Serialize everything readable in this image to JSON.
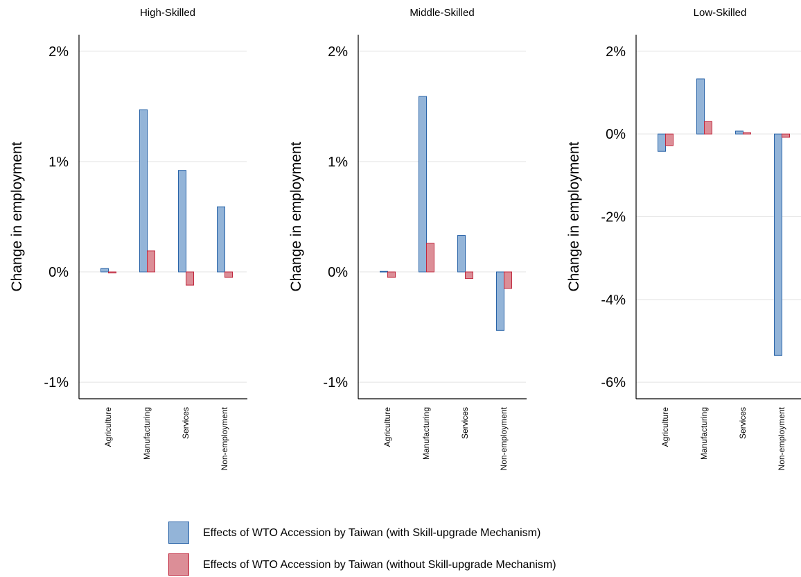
{
  "colors": {
    "with_fill": "#93b4d8",
    "with_stroke": "#2a64a8",
    "without_fill": "#dc8e97",
    "without_stroke": "#c0283e",
    "grid": "#e3e3e3",
    "axis": "#000000"
  },
  "legend": {
    "items": [
      {
        "label": "Effects of WTO Accession by Taiwan (with Skill-upgrade Mechanism)",
        "series": "with"
      },
      {
        "label": "Effects of WTO Accession by Taiwan (without Skill-upgrade Mechanism)",
        "series": "without"
      }
    ]
  },
  "chart_data": [
    {
      "type": "bar",
      "title": "High-Skilled",
      "ylabel": "Change in employment",
      "categories": [
        "Agriculture",
        "Manufacturing",
        "Services",
        "Non-employment"
      ],
      "ylim": [
        -1.15,
        2.15
      ],
      "yticks": [
        -1,
        0,
        1,
        2
      ],
      "ytick_labels": [
        "-1%",
        "0%",
        "1%",
        "2%"
      ],
      "grid": true,
      "series": [
        {
          "name": "Effects of WTO Accession by Taiwan (with Skill-upgrade Mechanism)",
          "values": [
            0.03,
            1.47,
            0.92,
            0.59
          ]
        },
        {
          "name": "Effects of WTO Accession by Taiwan (without Skill-upgrade Mechanism)",
          "values": [
            -0.01,
            0.19,
            -0.12,
            -0.05
          ]
        }
      ]
    },
    {
      "type": "bar",
      "title": "Middle-Skilled",
      "ylabel": "Change in employment",
      "categories": [
        "Agriculture",
        "Manufacturing",
        "Services",
        "Non-employment"
      ],
      "ylim": [
        -1.15,
        2.15
      ],
      "yticks": [
        -1,
        0,
        1,
        2
      ],
      "ytick_labels": [
        "-1%",
        "0%",
        "1%",
        "2%"
      ],
      "grid": true,
      "series": [
        {
          "name": "Effects of WTO Accession by Taiwan (with Skill-upgrade Mechanism)",
          "values": [
            0.005,
            1.59,
            0.33,
            -0.53
          ]
        },
        {
          "name": "Effects of WTO Accession by Taiwan (without Skill-upgrade Mechanism)",
          "values": [
            -0.05,
            0.26,
            -0.06,
            -0.15
          ]
        }
      ]
    },
    {
      "type": "bar",
      "title": "Low-Skilled",
      "ylabel": "Change in employment",
      "categories": [
        "Agriculture",
        "Manufacturing",
        "Services",
        "Non-employment"
      ],
      "ylim": [
        -6.4,
        2.4
      ],
      "yticks": [
        -6,
        -4,
        -2,
        0,
        2
      ],
      "ytick_labels": [
        "-6%",
        "-4%",
        "-2%",
        "0%",
        "2%"
      ],
      "grid": true,
      "series": [
        {
          "name": "Effects of WTO Accession by Taiwan (with Skill-upgrade Mechanism)",
          "values": [
            -0.42,
            1.33,
            0.07,
            -5.35
          ]
        },
        {
          "name": "Effects of WTO Accession by Taiwan (without Skill-upgrade Mechanism)",
          "values": [
            -0.28,
            0.3,
            0.03,
            -0.08
          ]
        }
      ]
    }
  ]
}
